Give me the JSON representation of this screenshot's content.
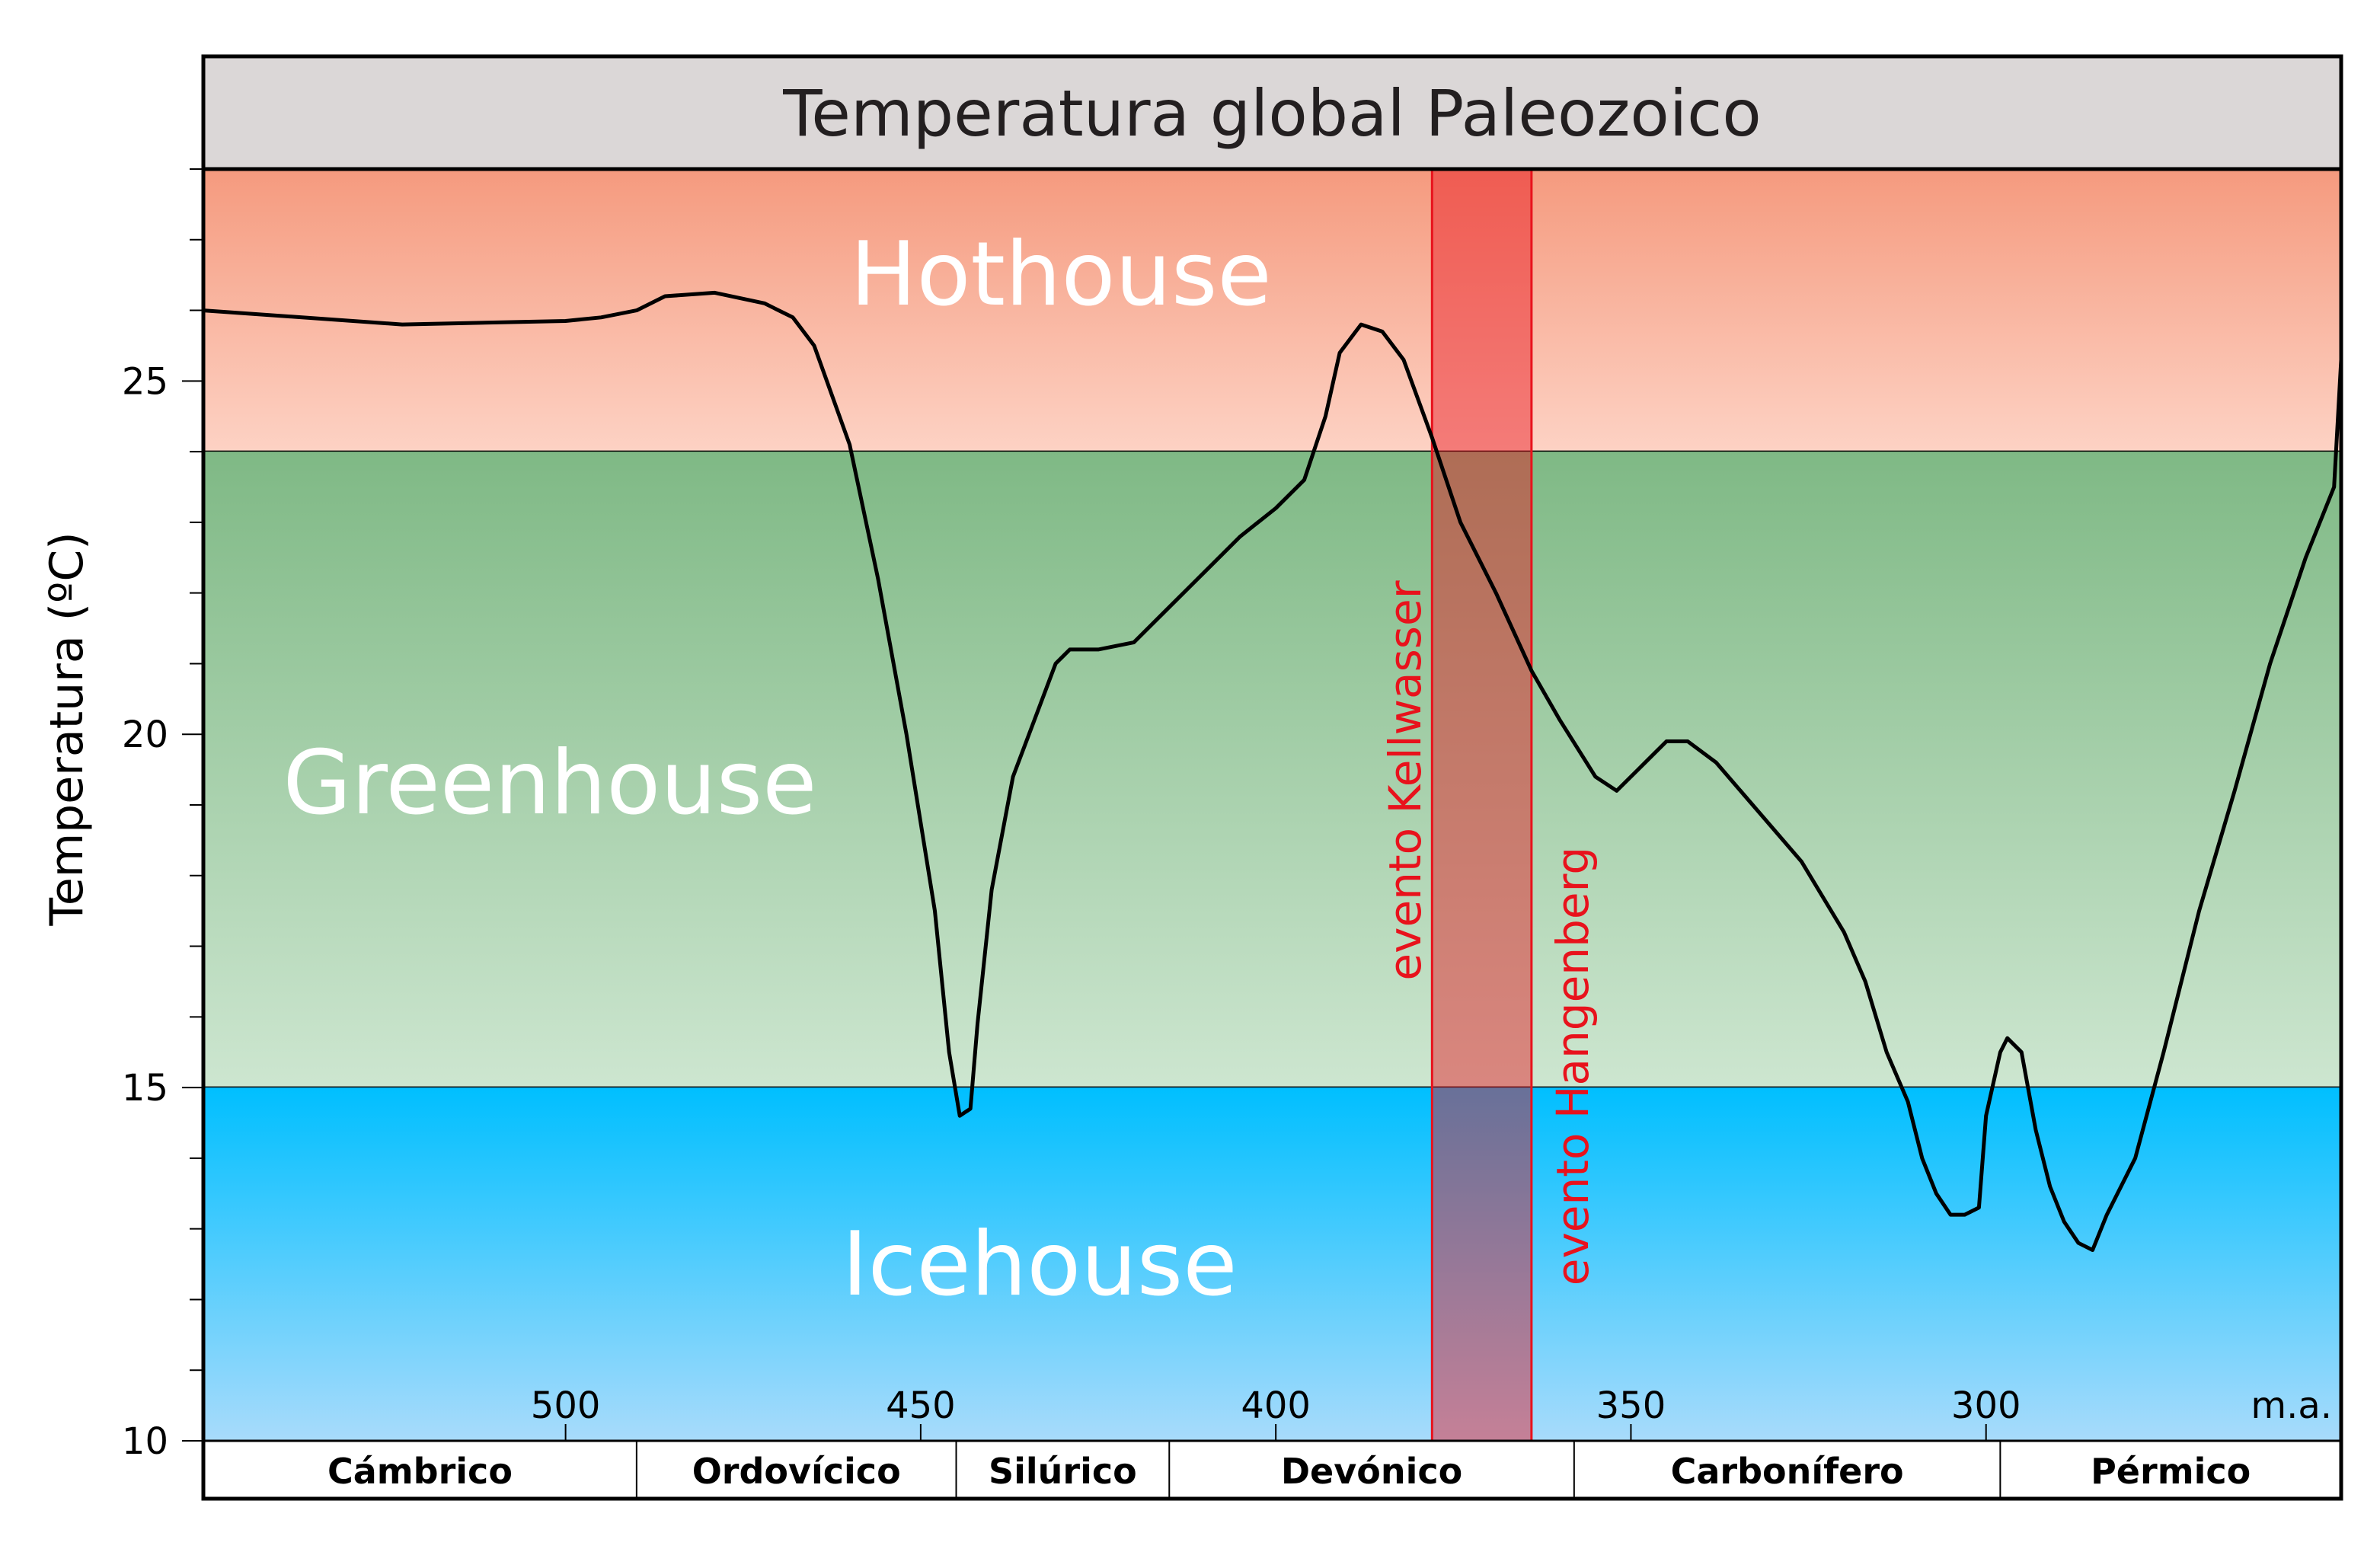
{
  "chart_data": {
    "type": "line",
    "title": "Temperatura global Paleozoico",
    "ylabel": "Temperatura (ºC)",
    "xlabel": "",
    "x_unit_label": "m.a.",
    "xlim": [
      551,
      250
    ],
    "ylim": [
      10,
      28
    ],
    "x_ticks": [
      500,
      450,
      400,
      350,
      300
    ],
    "y_ticks": [
      10,
      15,
      20,
      25
    ],
    "zones": [
      {
        "name": "Hothouse",
        "from": 24,
        "to": 28,
        "color_top": "#f59a7e",
        "color_bottom": "#fdd2c4"
      },
      {
        "name": "Greenhouse",
        "from": 15,
        "to": 24,
        "color_top": "#7fb985",
        "color_bottom": "#cde6d0"
      },
      {
        "name": "Icehouse",
        "from": 10,
        "to": 15,
        "color_top": "#00bfff",
        "color_bottom": "#a8dbfb"
      }
    ],
    "events": {
      "band_from": 378,
      "band_to": 364,
      "color": "#e8121c",
      "labels": [
        {
          "text": "evento Kellwasser",
          "at": 378
        },
        {
          "text": "evento Hangenberg",
          "at": 364
        }
      ]
    },
    "periods": [
      {
        "name": "Cámbrico",
        "from": 551,
        "to": 490
      },
      {
        "name": "Ordovícico",
        "from": 490,
        "to": 445
      },
      {
        "name": "Silúrico",
        "from": 445,
        "to": 415
      },
      {
        "name": "Devónico",
        "from": 415,
        "to": 358
      },
      {
        "name": "Carbonífero",
        "from": 358,
        "to": 298
      },
      {
        "name": "Pérmico",
        "from": 298,
        "to": 250
      }
    ],
    "series": [
      {
        "color": "#000000",
        "points": [
          [
            551,
            26.0
          ],
          [
            523,
            25.8
          ],
          [
            500,
            25.85
          ],
          [
            495,
            25.9
          ],
          [
            490,
            26.0
          ],
          [
            486,
            26.2
          ],
          [
            479,
            26.25
          ],
          [
            472,
            26.1
          ],
          [
            468,
            25.9
          ],
          [
            465,
            25.5
          ],
          [
            460,
            24.1
          ],
          [
            456,
            22.2
          ],
          [
            452,
            20.0
          ],
          [
            448,
            17.5
          ],
          [
            446,
            15.5
          ],
          [
            444.5,
            14.6
          ],
          [
            443,
            14.7
          ],
          [
            442,
            15.9
          ],
          [
            440,
            17.8
          ],
          [
            437,
            19.4
          ],
          [
            434,
            20.2
          ],
          [
            431,
            21.0
          ],
          [
            429,
            21.2
          ],
          [
            425,
            21.2
          ],
          [
            420,
            21.3
          ],
          [
            415,
            21.8
          ],
          [
            410,
            22.3
          ],
          [
            405,
            22.8
          ],
          [
            400,
            23.2
          ],
          [
            396,
            23.6
          ],
          [
            393,
            24.5
          ],
          [
            391,
            25.4
          ],
          [
            388,
            25.8
          ],
          [
            385,
            25.7
          ],
          [
            382,
            25.3
          ],
          [
            378,
            24.2
          ],
          [
            374,
            23.0
          ],
          [
            369,
            22.0
          ],
          [
            364,
            20.9
          ],
          [
            360,
            20.2
          ],
          [
            355,
            19.4
          ],
          [
            352,
            19.2
          ],
          [
            349,
            19.5
          ],
          [
            345,
            19.9
          ],
          [
            342,
            19.9
          ],
          [
            338,
            19.6
          ],
          [
            332,
            18.9
          ],
          [
            326,
            18.2
          ],
          [
            320,
            17.2
          ],
          [
            317,
            16.5
          ],
          [
            314,
            15.5
          ],
          [
            311,
            14.8
          ],
          [
            309,
            14.0
          ],
          [
            307,
            13.5
          ],
          [
            305,
            13.2
          ],
          [
            303,
            13.2
          ],
          [
            301,
            13.3
          ],
          [
            300,
            14.6
          ],
          [
            298,
            15.5
          ],
          [
            297,
            15.7
          ],
          [
            295,
            15.5
          ],
          [
            293,
            14.4
          ],
          [
            291,
            13.6
          ],
          [
            289,
            13.1
          ],
          [
            287,
            12.8
          ],
          [
            285,
            12.7
          ],
          [
            283,
            13.2
          ],
          [
            279,
            14.0
          ],
          [
            275,
            15.5
          ],
          [
            270,
            17.5
          ],
          [
            265,
            19.2
          ],
          [
            260,
            21.0
          ],
          [
            255,
            22.5
          ],
          [
            251,
            23.5
          ],
          [
            250,
            25.3
          ]
        ]
      }
    ]
  }
}
